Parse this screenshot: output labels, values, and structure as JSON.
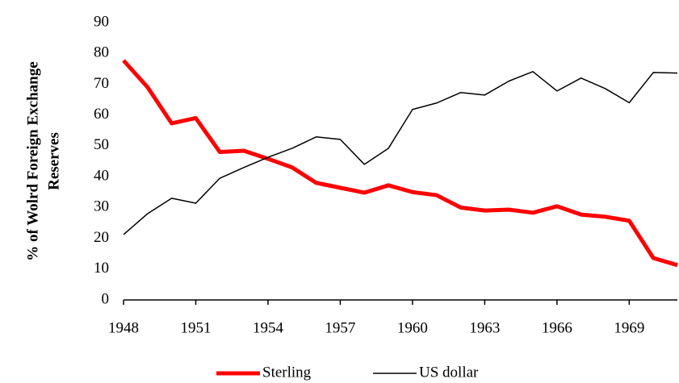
{
  "chart_data": {
    "type": "line",
    "ylabel": [
      "% of Wolrd Foreign Exchange",
      "Reserves"
    ],
    "x": [
      1948,
      1949,
      1950,
      1951,
      1952,
      1953,
      1954,
      1955,
      1956,
      1957,
      1958,
      1959,
      1960,
      1961,
      1962,
      1963,
      1964,
      1965,
      1966,
      1967,
      1968,
      1969,
      1970,
      1971
    ],
    "series": [
      {
        "name": "Sterling",
        "color": "#ff0000",
        "width": 5,
        "values": [
          77.7,
          69,
          57.3,
          59,
          48,
          48.4,
          45.8,
          43,
          38,
          36.4,
          34.8,
          37.2,
          35,
          34,
          30,
          29,
          29.3,
          28.3,
          30.4,
          27.7,
          27,
          25.7,
          13.6,
          11.3
        ]
      },
      {
        "name": "US dollar",
        "color": "#000000",
        "width": 1.5,
        "values": [
          21.2,
          28,
          33,
          31.4,
          39.5,
          43,
          46.3,
          49.2,
          52.9,
          52.1,
          44,
          49.2,
          61.8,
          63.9,
          67.3,
          66.5,
          71,
          74.1,
          67.8,
          72,
          68.6,
          64,
          73.8,
          73.6
        ]
      }
    ],
    "xlim": [
      1948,
      1971
    ],
    "xticks": [
      1948,
      1951,
      1954,
      1957,
      1960,
      1963,
      1966,
      1969
    ],
    "ylim": [
      0,
      90
    ],
    "yticks": [
      0,
      10,
      20,
      30,
      40,
      50,
      60,
      70,
      80,
      90
    ],
    "grid": false,
    "legend": "bottom"
  }
}
